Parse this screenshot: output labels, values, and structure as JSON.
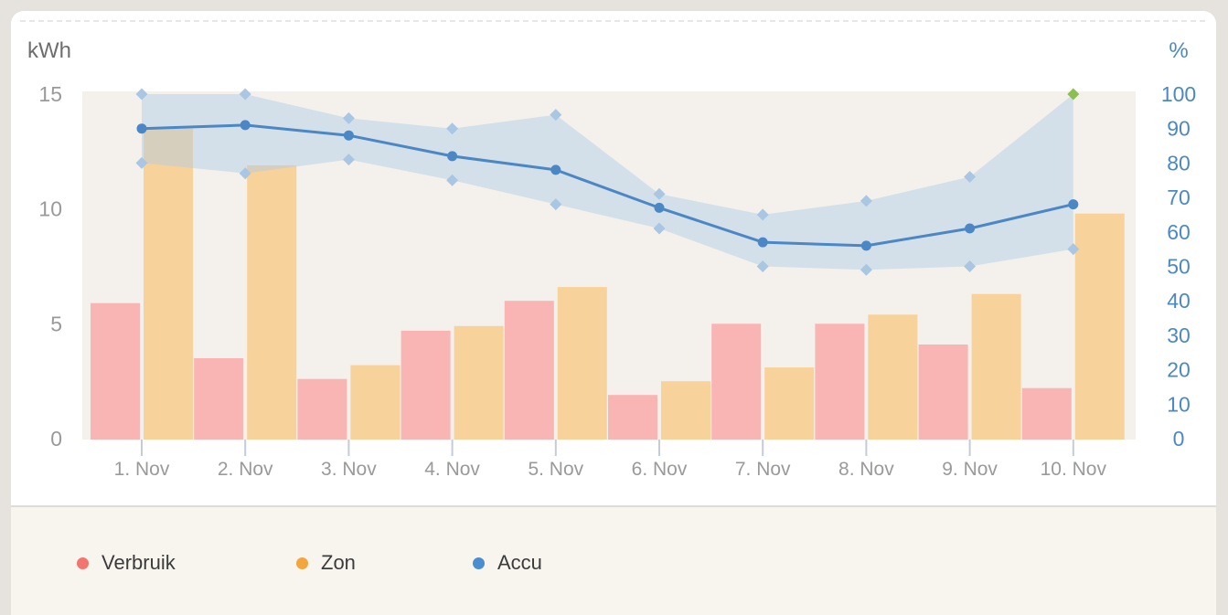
{
  "card": {
    "left_axis_title": "kWh",
    "right_axis_title": "%"
  },
  "legend": {
    "position": "bottom",
    "items": [
      {
        "label": "Verbruik",
        "color": "#f3766e"
      },
      {
        "label": "Zon",
        "color": "#f1a73d"
      },
      {
        "label": "Accu",
        "color": "#4a8ed0"
      }
    ]
  },
  "chart_data": {
    "type": "mixed-bar-line",
    "title": "",
    "categories": [
      "1. Nov",
      "2. Nov",
      "3. Nov",
      "4. Nov",
      "5. Nov",
      "6. Nov",
      "7. Nov",
      "8. Nov",
      "9. Nov",
      "10. Nov"
    ],
    "left_axis": {
      "title": "kWh",
      "ticks": [
        0,
        5,
        10,
        15
      ],
      "min": 0,
      "max": 15
    },
    "right_axis": {
      "title": "%",
      "ticks": [
        0,
        10,
        20,
        30,
        40,
        50,
        60,
        70,
        80,
        90,
        100
      ],
      "min": 0,
      "max": 100
    },
    "grid": false,
    "plot_bg": "#f4f1ec",
    "axis_text_color": "#9a9a9a",
    "right_axis_text_color": "#4b89c2",
    "tick_line_color": "#c3ccd7",
    "series": [
      {
        "name": "Verbruik",
        "type": "bar",
        "axis": "left",
        "unit": "kWh",
        "color": "#f9b4b4",
        "values": [
          5.9,
          3.5,
          2.6,
          4.7,
          6.0,
          1.9,
          5.0,
          5.0,
          4.1,
          2.2
        ]
      },
      {
        "name": "Zon",
        "type": "bar",
        "axis": "left",
        "unit": "kWh",
        "color": "#f8d29b",
        "values": [
          13.5,
          11.9,
          3.2,
          4.9,
          6.6,
          2.5,
          3.1,
          5.4,
          6.3,
          9.8
        ]
      },
      {
        "name": "Accu",
        "type": "line",
        "axis": "right",
        "unit": "%",
        "color": "#4c87c5",
        "values": [
          90,
          91,
          88,
          82,
          78,
          67,
          57,
          56,
          61,
          68
        ],
        "band": {
          "max": [
            100,
            100,
            93,
            90,
            94,
            71,
            65,
            69,
            76,
            100
          ],
          "min": [
            80,
            77,
            81,
            75,
            68,
            61,
            50,
            49,
            50,
            55
          ],
          "fill": "rgba(174,203,231,0.45)",
          "marker_color": "#a9c6e3",
          "full_marker_color": "#8bbf4f",
          "full_marker_index": 9
        }
      }
    ]
  }
}
